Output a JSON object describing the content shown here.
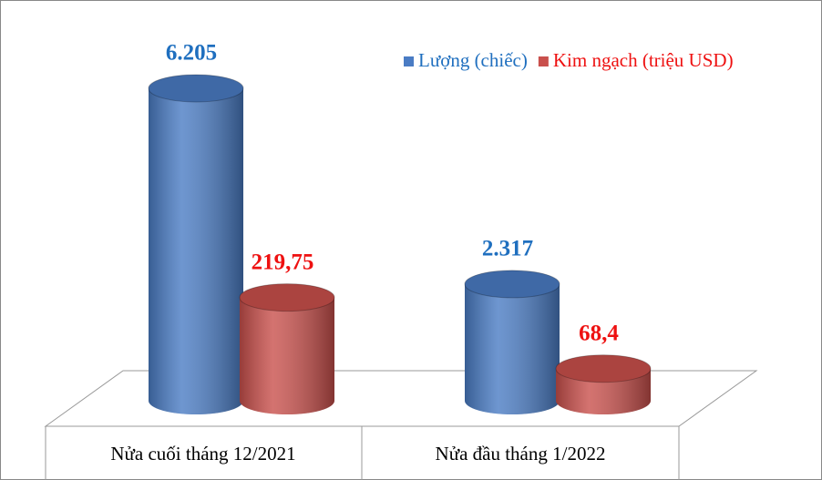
{
  "chart_data": {
    "type": "cylinder-bar",
    "categories": [
      "Nửa cuối tháng 12/2021",
      "Nửa đầu tháng 1/2022"
    ],
    "series": [
      {
        "name": "Lượng (chiếc)",
        "color": "#4a7cc4",
        "label_color": "#1f6fbf",
        "values": [
          6205,
          2317
        ],
        "value_labels": [
          "6.205",
          "2.317"
        ]
      },
      {
        "name": "Kim ngạch (triệu USD)",
        "color": "#c9504c",
        "label_color": "#ee1111",
        "axis": "y2",
        "values": [
          219.75,
          68.4
        ],
        "value_labels": [
          "219,75",
          "68,4"
        ]
      }
    ],
    "ylim": [
      0,
      7000
    ],
    "y2lim": [
      0,
      750
    ],
    "legend": "upper right"
  }
}
